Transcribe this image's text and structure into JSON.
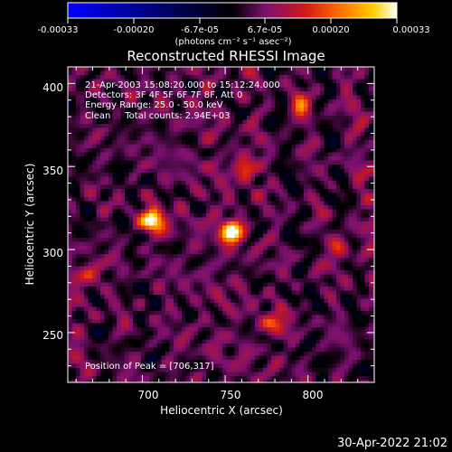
{
  "colorbar": {
    "ticks": [
      "-0.00033",
      "-0.00020",
      "-6.7e-05",
      "6.7e-05",
      "0.00020",
      "0.00033"
    ],
    "unit_label": "(photons cm⁻² s⁻¹ asec⁻²)",
    "range": [
      -0.00033,
      0.00033
    ],
    "colormap": [
      "#0000ff",
      "#000000",
      "#7a1070",
      "#d01818",
      "#ff7000",
      "#ffd000",
      "#ffffff"
    ]
  },
  "chart_data": {
    "type": "heatmap",
    "title": "Reconstructed RHESSI Image",
    "xlabel": "Heliocentric X (arcsec)",
    "ylabel": "Heliocentric Y (arcsec)",
    "xlim": [
      655,
      840
    ],
    "ylim": [
      220,
      410
    ],
    "x_ticks": [
      700,
      750,
      800
    ],
    "y_ticks": [
      250,
      300,
      350,
      400
    ],
    "annotation_lines": [
      "21-Apr-2003 15:08:20.000 to 15:12:24.000",
      "Detectors: 3F 4F 5F 6F 7F 8F, Att 0",
      "Energy Range: 25.0 - 50.0 keV",
      "Clean     Total counts: 2.94E+03"
    ],
    "peak_label": "Position of Peak = [706,317]",
    "peak": [
      706,
      317
    ],
    "bright_sources": [
      {
        "x": 706,
        "y": 317,
        "value": 0.00033
      },
      {
        "x": 754,
        "y": 311,
        "value": 0.00031
      },
      {
        "x": 762,
        "y": 350,
        "value": 0.00018
      },
      {
        "x": 795,
        "y": 385,
        "value": 0.00015
      },
      {
        "x": 668,
        "y": 285,
        "value": 0.00017
      },
      {
        "x": 780,
        "y": 255,
        "value": 0.00016
      },
      {
        "x": 820,
        "y": 300,
        "value": 0.00014
      }
    ]
  },
  "footer": {
    "timestamp": "30-Apr-2022 21:02"
  }
}
